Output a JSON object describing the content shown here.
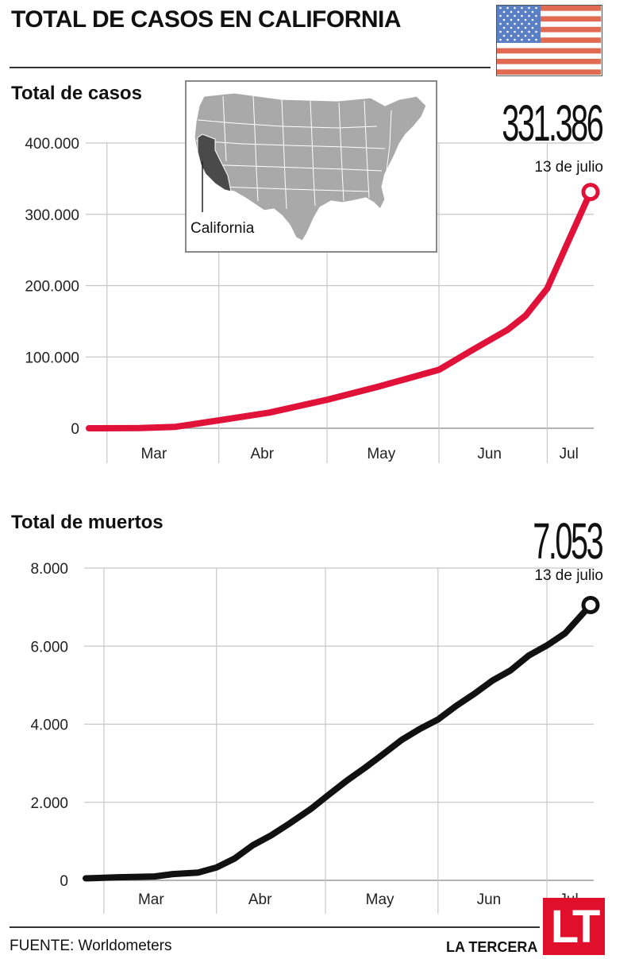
{
  "title": "TOTAL DE CASOS EN CALIFORNIA",
  "map_label": "California",
  "source": "FUENTE: Worldometers",
  "brand": "LA TERCERA",
  "logo": "LT",
  "colors": {
    "cases": "#e0123a",
    "deaths": "#111111",
    "grid": "#c8c8c8",
    "logo_bg": "#e0102c"
  },
  "chart_data": [
    {
      "type": "line",
      "title": "Total de casos",
      "highlight_value": "331.386",
      "highlight_date": "13 de julio",
      "y_ticks": [
        "400.000",
        "300.000",
        "200.000",
        "100.000",
        "0"
      ],
      "y_tick_values": [
        400000,
        300000,
        200000,
        100000,
        0
      ],
      "ylim": [
        0,
        400000
      ],
      "months": [
        "Mar",
        "Abr",
        "May",
        "Jun",
        "Jul"
      ],
      "series": [
        {
          "x": [
            "2020-02-25",
            "2020-03-10",
            "2020-03-20",
            "2020-04-01",
            "2020-04-15",
            "2020-05-01",
            "2020-05-15",
            "2020-06-01",
            "2020-06-10",
            "2020-06-20",
            "2020-06-25",
            "2020-07-01",
            "2020-07-07",
            "2020-07-13"
          ],
          "values": [
            0,
            200,
            2000,
            11000,
            22000,
            40000,
            58000,
            82000,
            109000,
            138000,
            158000,
            196000,
            264000,
            331386
          ]
        }
      ]
    },
    {
      "type": "line",
      "title": "Total de muertos",
      "highlight_value": "7.053",
      "highlight_date": "13 de julio",
      "y_ticks": [
        "8.000",
        "6.000",
        "4.000",
        "2.000",
        "0"
      ],
      "y_tick_values": [
        8000,
        6000,
        4000,
        2000,
        0
      ],
      "ylim": [
        0,
        8000
      ],
      "months": [
        "Mar",
        "Abr",
        "May",
        "Jun",
        "Jul"
      ],
      "series": [
        {
          "x": [
            "2020-02-25",
            "2020-03-05",
            "2020-03-15",
            "2020-03-20",
            "2020-03-27",
            "2020-04-01",
            "2020-04-06",
            "2020-04-11",
            "2020-04-16",
            "2020-04-21",
            "2020-04-27",
            "2020-05-02",
            "2020-05-07",
            "2020-05-12",
            "2020-05-17",
            "2020-05-22",
            "2020-05-27",
            "2020-06-01",
            "2020-06-06",
            "2020-06-11",
            "2020-06-16",
            "2020-06-21",
            "2020-06-26",
            "2020-07-01",
            "2020-07-06",
            "2020-07-13"
          ],
          "values": [
            50,
            80,
            100,
            160,
            200,
            330,
            560,
            900,
            1150,
            1450,
            1830,
            2200,
            2560,
            2890,
            3240,
            3600,
            3880,
            4120,
            4470,
            4780,
            5120,
            5380,
            5760,
            6020,
            6330,
            7053
          ]
        }
      ]
    }
  ]
}
